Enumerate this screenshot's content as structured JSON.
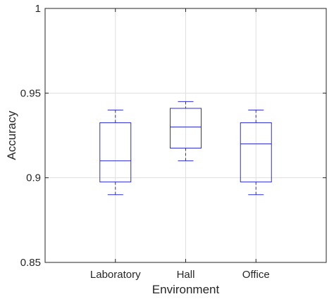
{
  "chart_data": {
    "type": "box",
    "categories": [
      "Laboratory",
      "Hall",
      "Office"
    ],
    "boxes": [
      {
        "category": "Laboratory",
        "whisker_low": 0.89,
        "q1": 0.8975,
        "median": 0.91,
        "q3": 0.9325,
        "whisker_high": 0.94
      },
      {
        "category": "Hall",
        "whisker_low": 0.91,
        "q1": 0.9175,
        "median": 0.93,
        "q3": 0.941,
        "whisker_high": 0.945
      },
      {
        "category": "Office",
        "whisker_low": 0.89,
        "q1": 0.8975,
        "median": 0.92,
        "q3": 0.9325,
        "whisker_high": 0.94
      }
    ],
    "title": "",
    "xlabel": "Environment",
    "ylabel": "Accuracy",
    "ylim": [
      0.85,
      1
    ],
    "yticks": [
      "0.85",
      "0.9",
      "0.95",
      "1"
    ],
    "grid": true,
    "colors": {
      "box": "#2b2bd9",
      "grid": "#dfdfdf",
      "axis": "#262626"
    }
  }
}
